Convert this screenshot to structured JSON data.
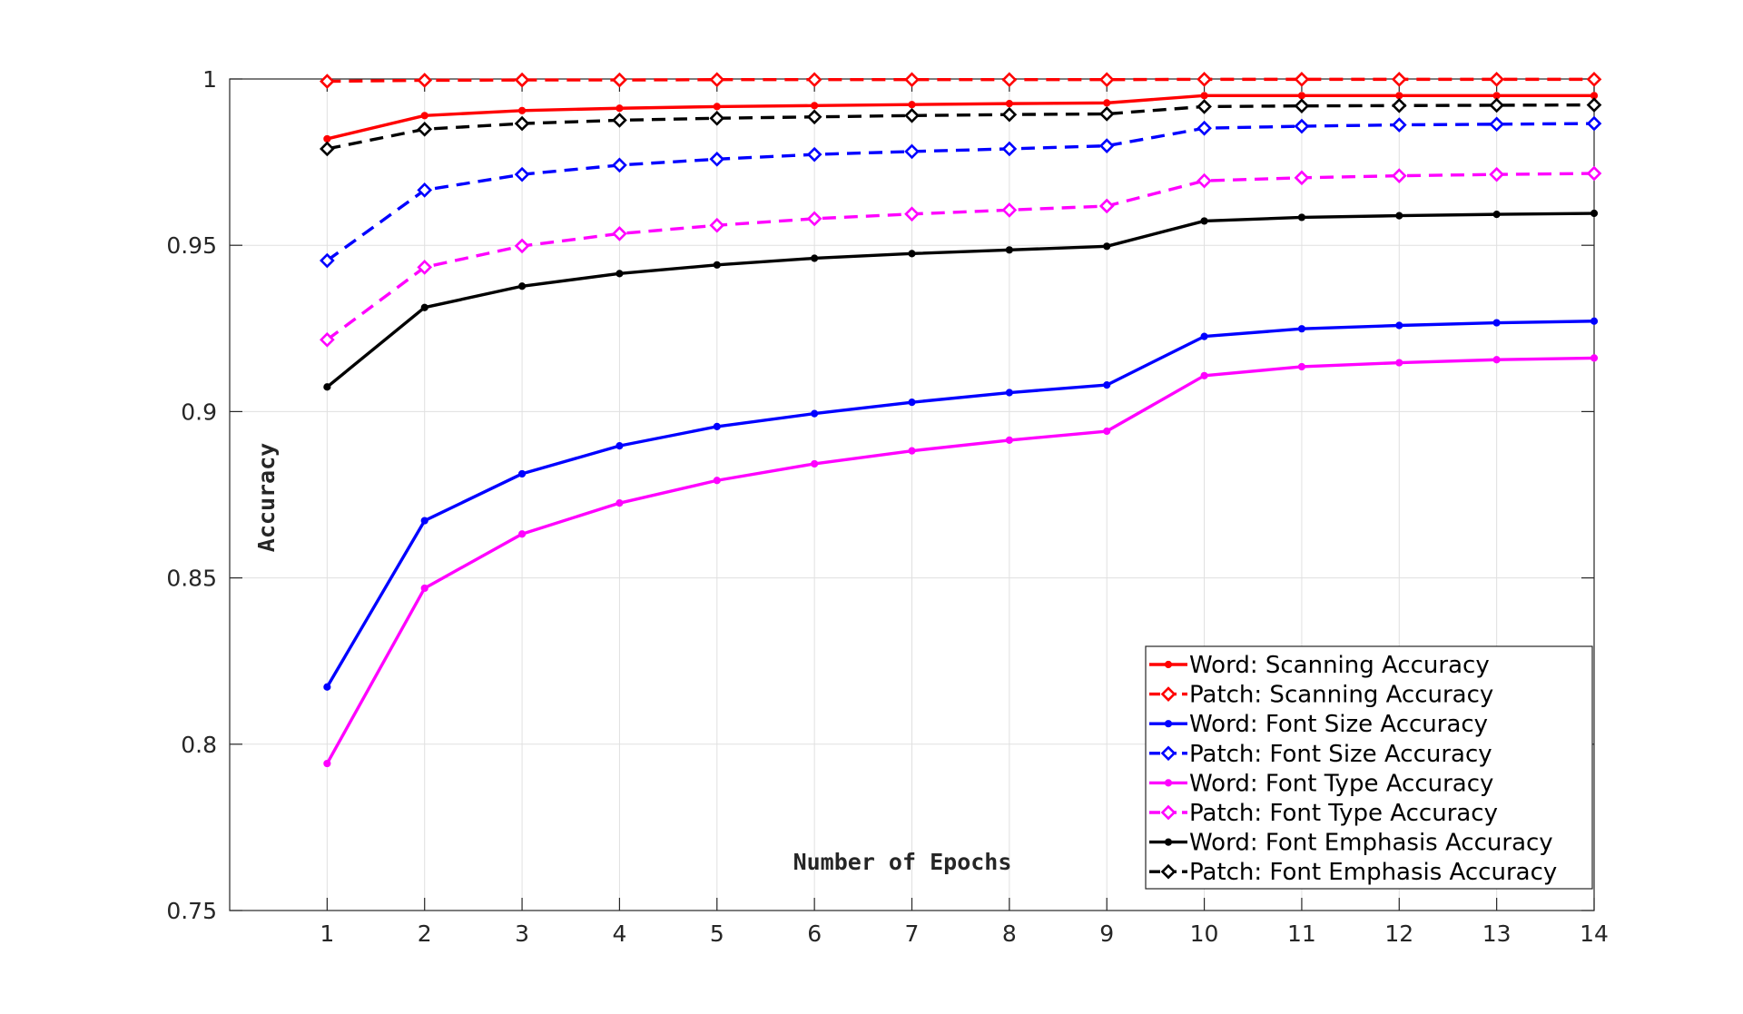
{
  "chart_data": {
    "type": "line",
    "title": "",
    "xlabel": "Number of Epochs",
    "ylabel": "Accuracy",
    "x": [
      1,
      2,
      3,
      4,
      5,
      6,
      7,
      8,
      9,
      10,
      11,
      12,
      13,
      14
    ],
    "xlim": [
      0,
      14
    ],
    "ylim": [
      0.75,
      1
    ],
    "xticks": [
      "1",
      "2",
      "3",
      "4",
      "5",
      "6",
      "7",
      "8",
      "9",
      "10",
      "11",
      "12",
      "13",
      "14"
    ],
    "yticks": [
      {
        "value": 0.75,
        "label": "0.75"
      },
      {
        "value": 0.8,
        "label": "0.8"
      },
      {
        "value": 0.85,
        "label": "0.85"
      },
      {
        "value": 0.9,
        "label": "0.9"
      },
      {
        "value": 0.95,
        "label": "0.95"
      },
      {
        "value": 1,
        "label": "1"
      }
    ],
    "grid": true,
    "legend_position": "bottom-right",
    "series": [
      {
        "name": "Word: Scanning Accuracy",
        "color": "#ff0000",
        "line": "solid",
        "marker": "dot",
        "values": [
          0.982,
          0.989,
          0.9905,
          0.9912,
          0.9917,
          0.992,
          0.9923,
          0.9926,
          0.9928,
          0.995,
          0.995,
          0.995,
          0.995,
          0.995
        ]
      },
      {
        "name": "Patch: Scanning Accuracy",
        "color": "#ff0000",
        "line": "dashed",
        "marker": "diamond",
        "values": [
          0.9993,
          0.9996,
          0.9997,
          0.9997,
          0.9998,
          0.9998,
          0.9998,
          0.9998,
          0.9998,
          0.9999,
          0.9999,
          0.9999,
          0.9999,
          0.9999
        ]
      },
      {
        "name": "Word: Font Size Accuracy",
        "color": "#0000ff",
        "line": "solid",
        "marker": "dot",
        "values": [
          0.8172,
          0.8672,
          0.8813,
          0.8897,
          0.8955,
          0.8994,
          0.9028,
          0.9057,
          0.908,
          0.9226,
          0.9249,
          0.9259,
          0.9267,
          0.9272
        ]
      },
      {
        "name": "Patch: Font Size Accuracy",
        "color": "#0000ff",
        "line": "dashed",
        "marker": "diamond",
        "values": [
          0.9454,
          0.9666,
          0.9713,
          0.9741,
          0.9759,
          0.9773,
          0.9782,
          0.979,
          0.9799,
          0.9852,
          0.9858,
          0.9862,
          0.9864,
          0.9866
        ]
      },
      {
        "name": "Word: Font Type Accuracy",
        "color": "#ff00ff",
        "line": "solid",
        "marker": "dot",
        "values": [
          0.7942,
          0.8469,
          0.8632,
          0.8725,
          0.8793,
          0.8843,
          0.8882,
          0.8914,
          0.8941,
          0.9108,
          0.9135,
          0.9147,
          0.9156,
          0.9161
        ]
      },
      {
        "name": "Patch: Font Type Accuracy",
        "color": "#ff00ff",
        "line": "dashed",
        "marker": "diamond",
        "values": [
          0.9216,
          0.9434,
          0.9498,
          0.9535,
          0.956,
          0.958,
          0.9594,
          0.9606,
          0.9618,
          0.9694,
          0.9703,
          0.9709,
          0.9713,
          0.9716
        ]
      },
      {
        "name": "Word: Font Emphasis Accuracy",
        "color": "#000000",
        "line": "solid",
        "marker": "dot",
        "values": [
          0.9074,
          0.9313,
          0.9377,
          0.9415,
          0.9441,
          0.9461,
          0.9475,
          0.9486,
          0.9497,
          0.9573,
          0.9584,
          0.9589,
          0.9593,
          0.9596
        ]
      },
      {
        "name": "Patch: Font Emphasis Accuracy",
        "color": "#000000",
        "line": "dashed",
        "marker": "diamond",
        "values": [
          0.979,
          0.9849,
          0.9866,
          0.9876,
          0.9882,
          0.9886,
          0.989,
          0.9893,
          0.9895,
          0.9917,
          0.9919,
          0.992,
          0.9921,
          0.9922
        ]
      }
    ]
  }
}
